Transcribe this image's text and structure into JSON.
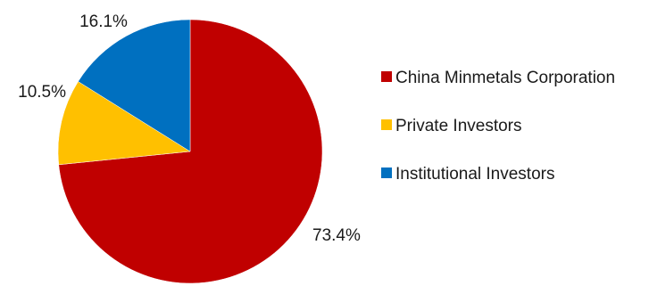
{
  "chart_data": {
    "type": "pie",
    "title": "",
    "legend_position": "right",
    "slices": [
      {
        "label": "China Minmetals Corporation",
        "value": 73.4,
        "display": "73.4%",
        "color": "#c00000"
      },
      {
        "label": "Private Investors",
        "value": 10.5,
        "display": "10.5%",
        "color": "#ffc000"
      },
      {
        "label": "Institutional Investors",
        "value": 16.1,
        "display": "16.1%",
        "color": "#0070c0"
      }
    ]
  }
}
